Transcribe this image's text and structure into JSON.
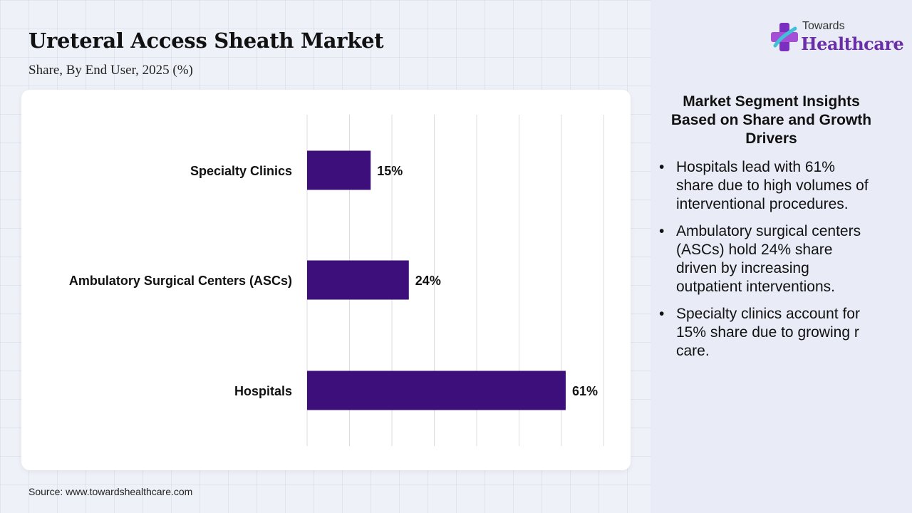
{
  "header": {
    "title": "Ureteral Access Sheath Market",
    "subtitle": "Share, By End User, 2025 (%)"
  },
  "logo": {
    "top_text": "Towards",
    "main_text": "Healthcare",
    "icon": "medical-cross-icon"
  },
  "chart_data": {
    "type": "bar",
    "orientation": "horizontal",
    "categories": [
      "Specialty Clinics",
      "Ambulatory Surgical Centers (ASCs)",
      "Hospitals"
    ],
    "values": [
      15,
      24,
      61
    ],
    "value_labels": [
      "15%",
      "24%",
      "61%"
    ],
    "xlim": [
      0,
      70
    ],
    "grid": "vertical",
    "bar_color": "#3d0f7a"
  },
  "insights": {
    "title": "Market Segment Insights Based on Share and Growth Drivers",
    "bullets": [
      "Hospitals lead with 61% share due to high volumes of interventional procedures.",
      "Ambulatory surgical centers (ASCs) hold 24% share driven by increasing outpatient interventions.",
      "Specialty clinics account for 15% share due to growing r care."
    ]
  },
  "footer": {
    "source": "Source: www.towardshealthcare.com"
  }
}
